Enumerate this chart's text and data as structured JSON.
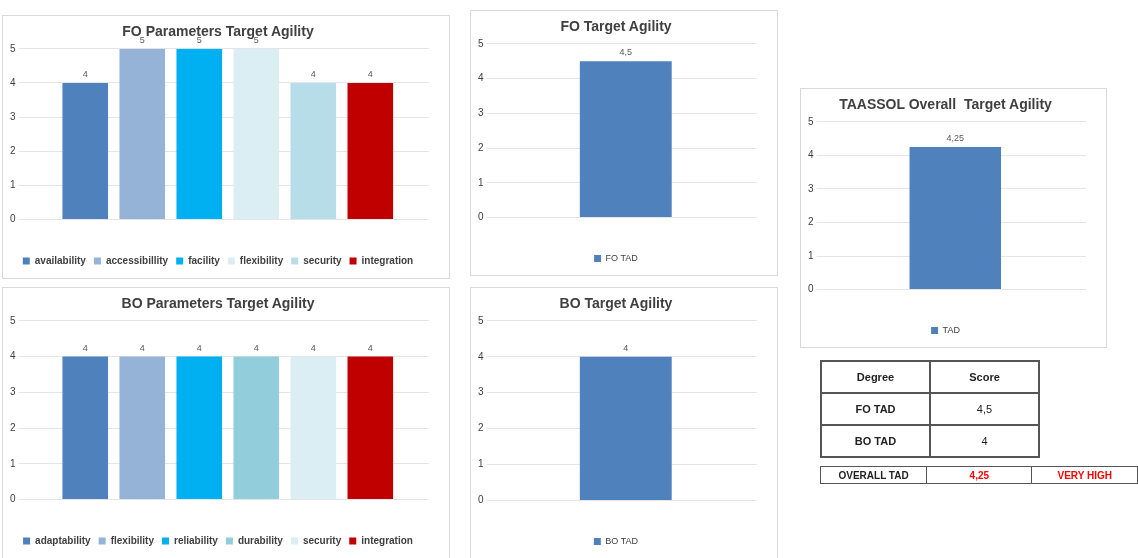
{
  "chart_data": [
    {
      "type": "bar",
      "title": "FO Parameters Target Agility",
      "categories": [
        null
      ],
      "ylim": [
        0,
        5
      ],
      "yticks": [
        0,
        1,
        2,
        3,
        4,
        5
      ],
      "grid": "y",
      "legend": "bottom",
      "data_labels": true,
      "series": [
        {
          "name": "availability",
          "color": "#4f81bd",
          "values": [
            4
          ]
        },
        {
          "name": "accessibillity",
          "color": "#95b3d7",
          "values": [
            5
          ]
        },
        {
          "name": "facility",
          "color": "#00b0f0",
          "values": [
            5
          ]
        },
        {
          "name": "flexibility",
          "color": "#dbeef4",
          "values": [
            5
          ]
        },
        {
          "name": "security",
          "color": "#b7dee8",
          "values": [
            4
          ]
        },
        {
          "name": "integration",
          "color": "#c00000",
          "values": [
            4
          ]
        }
      ]
    },
    {
      "type": "bar",
      "title": "FO Target Agility",
      "categories": [
        null
      ],
      "ylim": [
        0,
        5
      ],
      "yticks": [
        0,
        1,
        2,
        3,
        4,
        5
      ],
      "grid": "y",
      "legend": "bottom",
      "series": [
        {
          "name": "FO TAD",
          "color": "#4f81bd",
          "values": [
            4.5
          ],
          "value_labels": [
            "4,5"
          ]
        }
      ]
    },
    {
      "type": "bar",
      "title": "TAASSOL Overall  Target Agility",
      "categories": [
        null
      ],
      "ylim": [
        0,
        5
      ],
      "yticks": [
        0,
        1,
        2,
        3,
        4,
        5
      ],
      "grid": "y",
      "legend": "bottom",
      "series": [
        {
          "name": "TAD",
          "color": "#4f81bd",
          "values": [
            4.25
          ],
          "value_labels": [
            "4,25"
          ]
        }
      ]
    },
    {
      "type": "bar",
      "title": "BO Parameters Target Agility",
      "categories": [
        null
      ],
      "ylim": [
        0,
        5
      ],
      "yticks": [
        0,
        1,
        2,
        3,
        4,
        5
      ],
      "grid": "y",
      "legend": "bottom",
      "data_labels": true,
      "series": [
        {
          "name": "adaptability",
          "color": "#4f81bd",
          "values": [
            4
          ]
        },
        {
          "name": "flexibility",
          "color": "#95b3d7",
          "values": [
            4
          ]
        },
        {
          "name": "reliability",
          "color": "#00b0f0",
          "values": [
            4
          ]
        },
        {
          "name": "durability",
          "color": "#92cddc",
          "values": [
            4
          ]
        },
        {
          "name": "security",
          "color": "#dbeef4",
          "values": [
            4
          ]
        },
        {
          "name": "integration",
          "color": "#c00000",
          "values": [
            4
          ]
        }
      ]
    },
    {
      "type": "bar",
      "title": "BO Target Agility",
      "categories": [
        null
      ],
      "ylim": [
        0,
        5
      ],
      "yticks": [
        0,
        1,
        2,
        3,
        4,
        5
      ],
      "grid": "y",
      "legend": "bottom",
      "series": [
        {
          "name": "BO TAD",
          "color": "#4f81bd",
          "values": [
            4
          ],
          "value_labels": [
            "4"
          ]
        }
      ]
    },
    {
      "type": "other",
      "annotations": [
        "Degree",
        "Score",
        "FO TAD",
        "4,5",
        "BO TAD",
        "4",
        "OVERALL TAD",
        "4,25",
        "VERY HIGH"
      ]
    }
  ]
}
